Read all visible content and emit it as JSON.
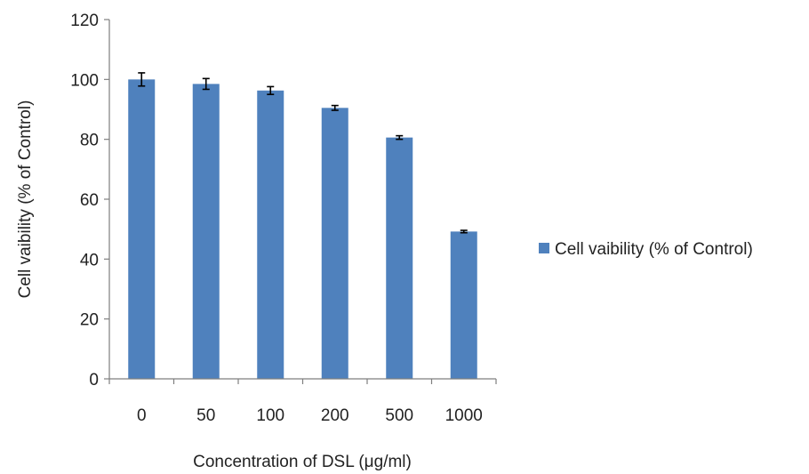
{
  "chart_data": {
    "type": "bar",
    "title": "",
    "xlabel": "Concentration of DSL (μg/ml)",
    "ylabel": "Cell vaibility (% of Control)",
    "categories": [
      "0",
      "50",
      "100",
      "200",
      "500",
      "1000"
    ],
    "series": [
      {
        "name": "Cell vaibility (% of Control)",
        "values": [
          100,
          98.5,
          96.3,
          90.5,
          80.6,
          49.2
        ],
        "error": [
          2.2,
          1.8,
          1.3,
          0.8,
          0.6,
          0.4
        ],
        "color": "#4f81bd"
      }
    ],
    "ylim": [
      0,
      120
    ],
    "yticks": [
      0,
      20,
      40,
      60,
      80,
      100,
      120
    ],
    "grid": false,
    "legend_position": "right"
  }
}
